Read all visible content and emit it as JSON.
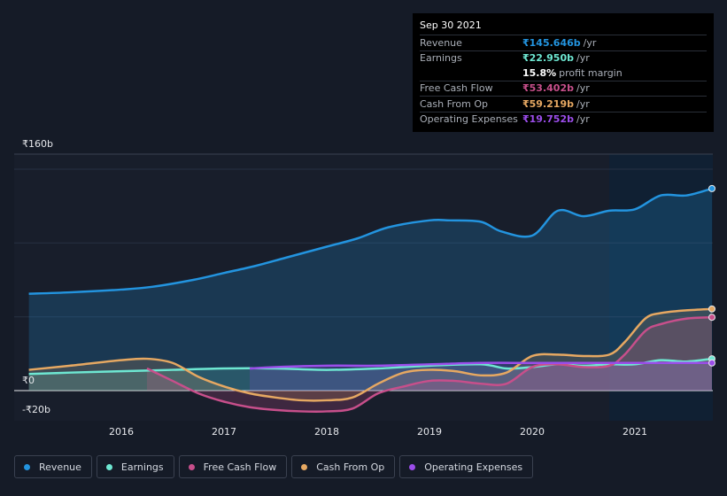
{
  "tooltip": {
    "date": "Sep 30 2021",
    "rows": [
      {
        "label": "Revenue",
        "value": "₹145.646b",
        "unit": "/yr",
        "color": "#2394df"
      },
      {
        "label": "Earnings",
        "value": "₹22.950b",
        "unit": "/yr",
        "color": "#6ee7d2"
      },
      {
        "label": "",
        "value": "15.8%",
        "unit": "profit margin",
        "color": "#ffffff"
      },
      {
        "label": "Free Cash Flow",
        "value": "₹53.402b",
        "unit": "/yr",
        "color": "#c74f8b"
      },
      {
        "label": "Cash From Op",
        "value": "₹59.219b",
        "unit": "/yr",
        "color": "#e6a862"
      },
      {
        "label": "Operating Expenses",
        "value": "₹19.752b",
        "unit": "/yr",
        "color": "#9b4dea"
      }
    ]
  },
  "axis": {
    "y_top": "₹160b",
    "y_zero": "₹0",
    "y_bottom": "-₹20b"
  },
  "legend": [
    {
      "label": "Revenue",
      "color": "#2394df"
    },
    {
      "label": "Earnings",
      "color": "#6ee7d2"
    },
    {
      "label": "Free Cash Flow",
      "color": "#c74f8b"
    },
    {
      "label": "Cash From Op",
      "color": "#e6a862"
    },
    {
      "label": "Operating Expenses",
      "color": "#9b4dea"
    }
  ],
  "chart_data": {
    "type": "area",
    "title": "",
    "xlabel": "",
    "ylabel": "",
    "ylim": [
      -20,
      160
    ],
    "x_ticks": [
      "2016",
      "2017",
      "2018",
      "2019",
      "2020",
      "2021"
    ],
    "x_range": [
      2015.1,
      2021.75
    ],
    "forecast_start": 2020.75,
    "series": [
      {
        "name": "Revenue",
        "color": "#2394df",
        "x": [
          2015.1,
          2015.5,
          2016.0,
          2016.3,
          2016.7,
          2017.0,
          2017.3,
          2017.6,
          2018.0,
          2018.3,
          2018.6,
          2019.0,
          2019.2,
          2019.5,
          2019.7,
          2020.0,
          2020.25,
          2020.5,
          2020.75,
          2021.0,
          2021.25,
          2021.5,
          2021.75
        ],
        "y": [
          70,
          71,
          73,
          75,
          80,
          85,
          90,
          96,
          104,
          110,
          118,
          123,
          123,
          122,
          115,
          112,
          130,
          126,
          130,
          131,
          141,
          141,
          146
        ]
      },
      {
        "name": "Earnings",
        "color": "#6ee7d2",
        "x": [
          2015.1,
          2015.5,
          2016.0,
          2016.5,
          2017.0,
          2017.5,
          2018.0,
          2018.5,
          2019.0,
          2019.5,
          2019.75,
          2020.0,
          2020.25,
          2020.5,
          2020.75,
          2021.0,
          2021.25,
          2021.5,
          2021.75
        ],
        "y": [
          12,
          13,
          14,
          15,
          16,
          16,
          15,
          16,
          18,
          19,
          16,
          17,
          19,
          18,
          19,
          19,
          22,
          21,
          23
        ]
      },
      {
        "name": "Free Cash Flow",
        "color": "#c74f8b",
        "x": [
          2016.25,
          2016.5,
          2016.75,
          2017.0,
          2017.25,
          2017.5,
          2017.75,
          2018.0,
          2018.25,
          2018.5,
          2018.75,
          2019.0,
          2019.25,
          2019.5,
          2019.75,
          2020.0,
          2020.25,
          2020.5,
          2020.75,
          2020.9,
          2021.1,
          2021.25,
          2021.5,
          2021.75
        ],
        "y": [
          16,
          7,
          -2,
          -8,
          -12,
          -14,
          -15,
          -15,
          -13,
          -2,
          3,
          7,
          7,
          5,
          5,
          17,
          19,
          17,
          18,
          26,
          43,
          48,
          52,
          53
        ]
      },
      {
        "name": "Cash From Op",
        "color": "#e6a862",
        "x": [
          2015.1,
          2015.5,
          2016.0,
          2016.25,
          2016.5,
          2016.75,
          2017.0,
          2017.25,
          2017.5,
          2017.75,
          2018.0,
          2018.25,
          2018.5,
          2018.75,
          2019.0,
          2019.25,
          2019.5,
          2019.75,
          2020.0,
          2020.25,
          2020.5,
          2020.75,
          2020.9,
          2021.1,
          2021.25,
          2021.5,
          2021.75
        ],
        "y": [
          15,
          18,
          22,
          23,
          20,
          10,
          3,
          -2,
          -5,
          -7,
          -7,
          -5,
          5,
          13,
          15,
          14,
          11,
          13,
          25,
          26,
          25,
          26,
          35,
          52,
          56,
          58,
          59
        ]
      },
      {
        "name": "Operating Expenses",
        "color": "#9b4dea",
        "x": [
          2017.25,
          2017.5,
          2018.0,
          2018.5,
          2019.0,
          2019.5,
          2020.0,
          2020.5,
          2020.75,
          2021.0,
          2021.25,
          2021.5,
          2021.75
        ],
        "y": [
          16,
          17,
          18,
          18,
          19,
          20,
          20,
          20,
          20,
          20,
          20,
          20,
          20
        ]
      }
    ]
  }
}
